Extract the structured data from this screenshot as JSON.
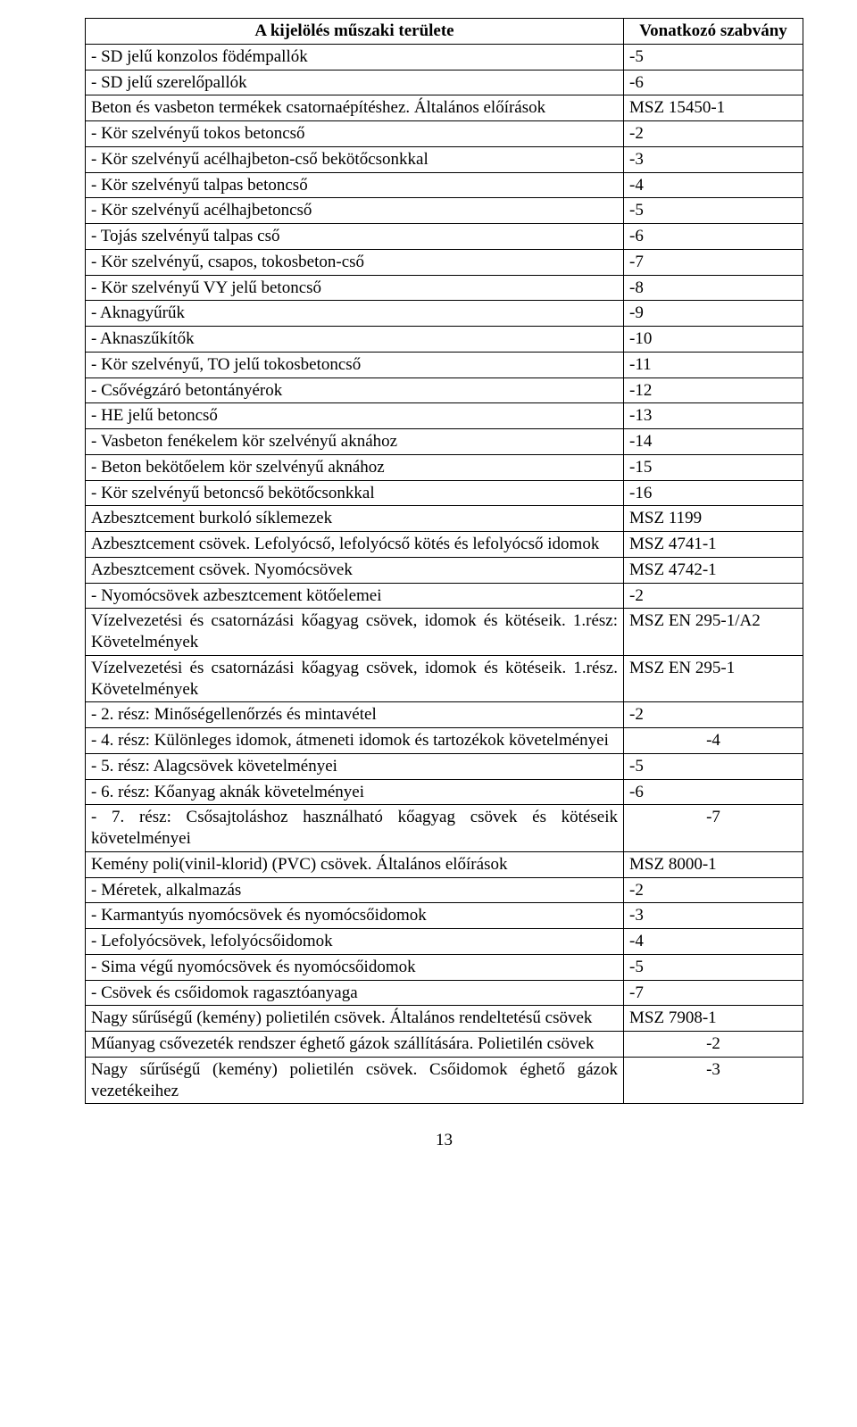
{
  "header": {
    "left": "A kijelölés műszaki területe",
    "right": "Vonatkozó szabvány"
  },
  "rows": [
    {
      "l": "- SD jelű konzolos födémpallók",
      "r": "-5"
    },
    {
      "l": "- SD jelű szerelőpallók",
      "r": "-6"
    },
    {
      "l": "Beton és vasbeton termékek csatornaépítéshez. Általános előírások",
      "r": "MSZ 15450-1",
      "justify": true
    },
    {
      "l": "- Kör szelvényű tokos betoncső",
      "r": "-2"
    },
    {
      "l": "- Kör szelvényű acélhajbeton-cső bekötőcsonkkal",
      "r": "-3"
    },
    {
      "l": "- Kör szelvényű talpas betoncső",
      "r": "-4"
    },
    {
      "l": "- Kör szelvényű acélhajbetoncső",
      "r": "-5"
    },
    {
      "l": "- Tojás szelvényű talpas cső",
      "r": "-6"
    },
    {
      "l": "- Kör szelvényű, csapos, tokosbeton-cső",
      "r": "-7"
    },
    {
      "l": "- Kör szelvényű VY jelű betoncső",
      "r": "-8"
    },
    {
      "l": "- Aknagyűrűk",
      "r": "-9"
    },
    {
      "l": "- Aknaszűkítők",
      "r": "-10"
    },
    {
      "l": "- Kör szelvényű, TO jelű tokosbetoncső",
      "r": "-11"
    },
    {
      "l": "- Csővégzáró betontányérok",
      "r": "-12"
    },
    {
      "l": "- HE jelű betoncső",
      "r": "-13"
    },
    {
      "l": "- Vasbeton fenékelem kör szelvényű aknához",
      "r": "-14"
    },
    {
      "l": "- Beton bekötőelem kör szelvényű aknához",
      "r": "-15"
    },
    {
      "l": "- Kör szelvényű betoncső bekötőcsonkkal",
      "r": "-16"
    },
    {
      "l": "Azbesztcement burkoló síklemezek",
      "r": "MSZ 1199"
    },
    {
      "l": "Azbesztcement csövek. Lefolyócső, lefolyócső kötés és lefolyócső idomok",
      "r": "MSZ 4741-1",
      "justify": true
    },
    {
      "l": "Azbesztcement csövek. Nyomócsövek",
      "r": "MSZ 4742-1"
    },
    {
      "l": "- Nyomócsövek azbesztcement kötőelemei",
      "r": "-2"
    },
    {
      "l": "Vízelvezetési és csatornázási kőagyag csövek, idomok és kötéseik. 1.rész: Követelmények",
      "r": "MSZ EN 295-1/A2",
      "justify": true
    },
    {
      "l": "Vízelvezetési és csatornázási kőagyag csövek, idomok és kötéseik. 1.rész. Követelmények",
      "r": "MSZ EN 295-1",
      "justify": true
    },
    {
      "l": "- 2. rész: Minőségellenőrzés és mintavétel",
      "r": "-2"
    },
    {
      "l": "- 4. rész: Különleges idomok, átmeneti idomok és tartozékok követelményei",
      "r": "-4",
      "rcenter": true,
      "justify": true
    },
    {
      "l": "- 5. rész: Alagcsövek követelményei",
      "r": "-5"
    },
    {
      "l": "- 6. rész: Kőanyag aknák követelményei",
      "r": "-6"
    },
    {
      "l": "- 7. rész: Csősajtoláshoz használható kőagyag csövek és kötéseik követelményei",
      "r": "-7",
      "rcenter": true,
      "justify": true
    },
    {
      "l": "Kemény poli(vinil-klorid) (PVC) csövek. Általános előírások",
      "r": "MSZ 8000-1"
    },
    {
      "l": "- Méretek, alkalmazás",
      "r": "-2"
    },
    {
      "l": "- Karmantyús nyomócsövek és nyomócsőidomok",
      "r": "-3"
    },
    {
      "l": "- Lefolyócsövek, lefolyócsőidomok",
      "r": "-4"
    },
    {
      "l": "- Sima végű nyomócsövek és nyomócsőidomok",
      "r": "-5"
    },
    {
      "l": "- Csövek és csőidomok ragasztóanyaga",
      "r": "-7"
    },
    {
      "l": "Nagy sűrűségű (kemény) polietilén csövek. Általános rendeltetésű csövek",
      "r": "MSZ 7908-1",
      "justify": true
    },
    {
      "l": "Műanyag csővezeték rendszer éghető gázok szállítására. Polietilén csövek",
      "r": "-2",
      "rcenter": true,
      "justify": true
    },
    {
      "l": "Nagy sűrűségű (kemény) polietilén csövek. Csőidomok éghető gázok vezetékeihez",
      "r": "-3",
      "rcenter": true,
      "justify": true
    }
  ],
  "pageNumber": "13"
}
